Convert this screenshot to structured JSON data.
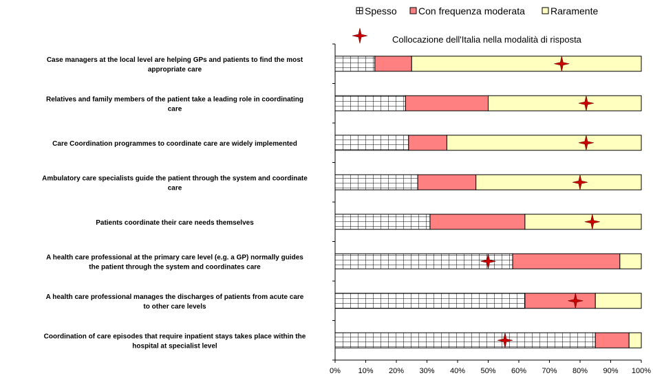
{
  "chart_data": {
    "type": "bar",
    "orientation": "horizontal",
    "stacked": true,
    "normalized": true,
    "categories": [
      [
        "Case managers at the local level are helping GPs and patients to find the most",
        "appropriate care"
      ],
      [
        "Relatives and family members of the patient take a leading role in coordinating",
        "care"
      ],
      [
        "Care Coordination programmes to coordinate care are widely implemented"
      ],
      [
        "Ambulatory care specialists guide the patient through the system and coordinate",
        "care"
      ],
      [
        "Patients coordinate their care needs themselves"
      ],
      [
        "A health care professional at the primary care level (e.g. a GP) normally guides",
        "the patient through the system and coordinates care"
      ],
      [
        "A health care professional manages the discharges of patients from acute care",
        "to other care levels"
      ],
      [
        "Coordination of care episodes that require inpatient stays takes place within the",
        "hospital at specialist level"
      ]
    ],
    "series": [
      {
        "name": "Spesso",
        "color": "#ffffff",
        "pattern": "grid",
        "values": [
          13,
          23,
          24,
          27,
          31,
          58,
          62,
          85
        ]
      },
      {
        "name": "Con frequenza moderata",
        "color": "#ff8080",
        "values": [
          12,
          27,
          12.5,
          19,
          31,
          35,
          23,
          11
        ]
      },
      {
        "name": "Raramente",
        "color": "#ffffc0",
        "values": [
          75,
          50,
          63.5,
          54,
          38,
          7,
          15,
          4
        ]
      }
    ],
    "markers": {
      "name": "Collocazione dell'Italia nella modalità di risposta",
      "color": "#cc0000",
      "values": [
        74,
        82,
        82,
        80,
        84,
        50,
        78.5,
        55.5
      ]
    },
    "x_ticks": [
      "0%",
      "10%",
      "20%",
      "30%",
      "40%",
      "50%",
      "60%",
      "70%",
      "80%",
      "90%",
      "100%"
    ],
    "xlim": [
      0,
      100
    ],
    "grid": false,
    "legend_position": "top-right"
  }
}
